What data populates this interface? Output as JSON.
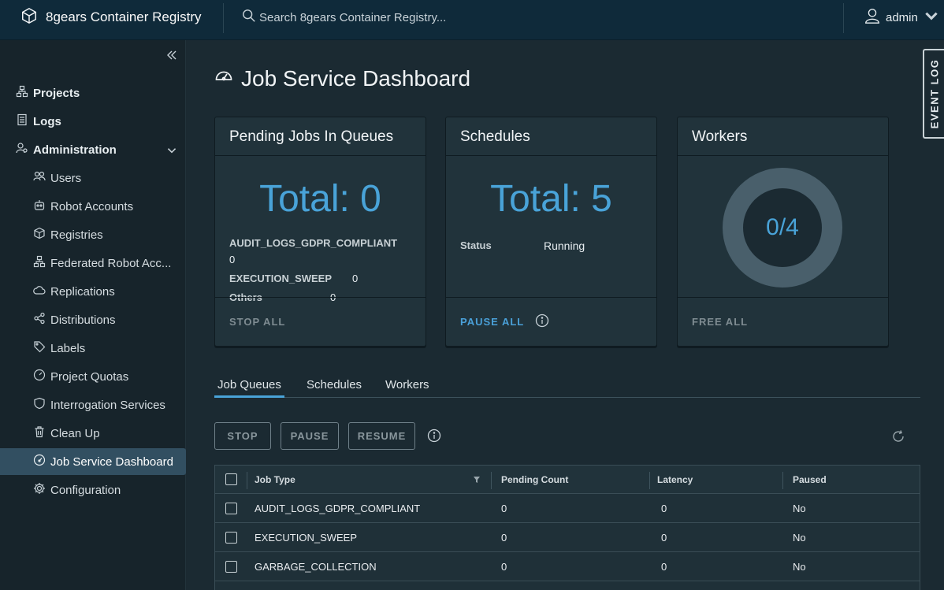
{
  "header": {
    "app_title": "8gears Container Registry",
    "search_placeholder": "Search 8gears Container Registry...",
    "user": "admin"
  },
  "sidebar": {
    "items": [
      {
        "label": "Projects",
        "icon": "projects-icon"
      },
      {
        "label": "Logs",
        "icon": "logs-icon"
      },
      {
        "label": "Administration",
        "icon": "administration-icon"
      },
      {
        "label": "Users",
        "icon": "users-icon"
      },
      {
        "label": "Robot Accounts",
        "icon": "robot-icon"
      },
      {
        "label": "Registries",
        "icon": "registries-icon"
      },
      {
        "label": "Federated Robot Acc...",
        "icon": "federated-icon"
      },
      {
        "label": "Replications",
        "icon": "cloud-icon"
      },
      {
        "label": "Distributions",
        "icon": "share-icon"
      },
      {
        "label": "Labels",
        "icon": "tag-icon"
      },
      {
        "label": "Project Quotas",
        "icon": "gauge-icon"
      },
      {
        "label": "Interrogation Services",
        "icon": "shield-icon"
      },
      {
        "label": "Clean Up",
        "icon": "trash-icon"
      },
      {
        "label": "Job Service Dashboard",
        "icon": "dashboard-icon"
      },
      {
        "label": "Configuration",
        "icon": "gear-icon"
      }
    ]
  },
  "page": {
    "title": "Job Service Dashboard"
  },
  "event_log": "EVENT LOG",
  "cards": {
    "pending": {
      "title": "Pending Jobs In Queues",
      "total": "Total: 0",
      "rows": [
        {
          "name": "AUDIT_LOGS_GDPR_COMPLIANT",
          "value": "0"
        },
        {
          "name": "EXECUTION_SWEEP",
          "value": "0"
        },
        {
          "name": "Others",
          "value": "0"
        }
      ],
      "action": "STOP ALL"
    },
    "schedules": {
      "title": "Schedules",
      "total": "Total: 5",
      "status_label": "Status",
      "status_value": "Running",
      "action": "PAUSE ALL"
    },
    "workers": {
      "title": "Workers",
      "usage": "0/4",
      "action": "FREE ALL"
    }
  },
  "tabs": [
    "Job Queues",
    "Schedules",
    "Workers"
  ],
  "toolbar": {
    "stop": "STOP",
    "pause": "PAUSE",
    "resume": "RESUME"
  },
  "table": {
    "columns": [
      "Job Type",
      "Pending Count",
      "Latency",
      "Paused"
    ],
    "rows": [
      [
        "AUDIT_LOGS_GDPR_COMPLIANT",
        "0",
        "0",
        "No"
      ],
      [
        "EXECUTION_SWEEP",
        "0",
        "0",
        "No"
      ],
      [
        "GARBAGE_COLLECTION",
        "0",
        "0",
        "No"
      ]
    ]
  },
  "colors": {
    "accent": "#49a3d8",
    "header_bg": "#0f2a3a",
    "sidebar_bg": "#17242b",
    "active_item": "#324f61"
  }
}
